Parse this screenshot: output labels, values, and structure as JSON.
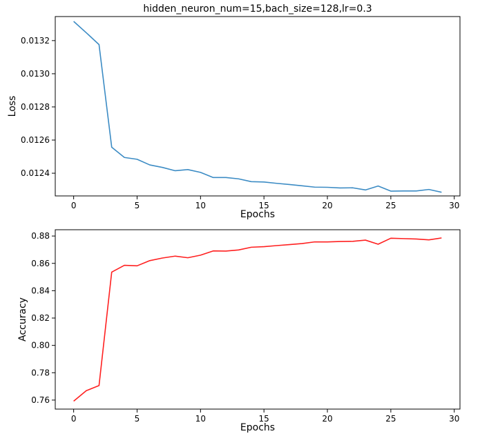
{
  "chart_data": [
    {
      "type": "line",
      "title": "hidden_neuron_num=15,bach_size=128,lr=0.3",
      "xlabel": "Epochs",
      "ylabel": "Loss",
      "xlim": [
        -1.45,
        30.45
      ],
      "ylim": [
        0.012263,
        0.013345
      ],
      "xticks": [
        0,
        5,
        10,
        15,
        20,
        25,
        30
      ],
      "xtick_labels": [
        "0",
        "5",
        "10",
        "15",
        "20",
        "25",
        "30"
      ],
      "yticks": [
        0.0124,
        0.0126,
        0.0128,
        0.013,
        0.0132
      ],
      "ytick_labels": [
        "0.0124",
        "0.0126",
        "0.0128",
        "0.0130",
        "0.0132"
      ],
      "grid": false,
      "color": "#3b8bc4",
      "series": [
        {
          "x": [
            0,
            1,
            2,
            3,
            4,
            5,
            6,
            7,
            8,
            9,
            10,
            11,
            12,
            13,
            14,
            15,
            16,
            17,
            18,
            19,
            20,
            21,
            22,
            23,
            24,
            25,
            26,
            27,
            28,
            29
          ],
          "values": [
            0.013316,
            0.013247,
            0.013176,
            0.012557,
            0.012495,
            0.012484,
            0.01245,
            0.012435,
            0.012415,
            0.012422,
            0.012405,
            0.012374,
            0.012374,
            0.012366,
            0.012349,
            0.012347,
            0.012339,
            0.012332,
            0.012324,
            0.012316,
            0.012315,
            0.012311,
            0.012312,
            0.012299,
            0.012323,
            0.012292,
            0.012293,
            0.012293,
            0.012302,
            0.012285
          ]
        }
      ]
    },
    {
      "type": "line",
      "title": "",
      "xlabel": "Epochs",
      "ylabel": "Accuracy",
      "xlim": [
        -1.45,
        30.45
      ],
      "ylim": [
        0.7534,
        0.8846
      ],
      "xticks": [
        0,
        5,
        10,
        15,
        20,
        25,
        30
      ],
      "xtick_labels": [
        "0",
        "5",
        "10",
        "15",
        "20",
        "25",
        "30"
      ],
      "yticks": [
        0.76,
        0.78,
        0.8,
        0.82,
        0.84,
        0.86,
        0.88
      ],
      "ytick_labels": [
        "0.76",
        "0.78",
        "0.80",
        "0.82",
        "0.84",
        "0.86",
        "0.88"
      ],
      "grid": false,
      "color": "#ff1f1f",
      "series": [
        {
          "x": [
            0,
            1,
            2,
            3,
            4,
            5,
            6,
            7,
            8,
            9,
            10,
            11,
            12,
            13,
            14,
            15,
            16,
            17,
            18,
            19,
            20,
            21,
            22,
            23,
            24,
            25,
            26,
            27,
            28,
            29
          ],
          "values": [
            0.7592,
            0.7669,
            0.7706,
            0.8536,
            0.8586,
            0.8582,
            0.862,
            0.8639,
            0.8653,
            0.8641,
            0.866,
            0.8691,
            0.869,
            0.8698,
            0.8718,
            0.8722,
            0.873,
            0.8737,
            0.8745,
            0.8757,
            0.8757,
            0.876,
            0.8761,
            0.877,
            0.874,
            0.8784,
            0.8781,
            0.8778,
            0.8772,
            0.8786
          ]
        }
      ]
    }
  ]
}
